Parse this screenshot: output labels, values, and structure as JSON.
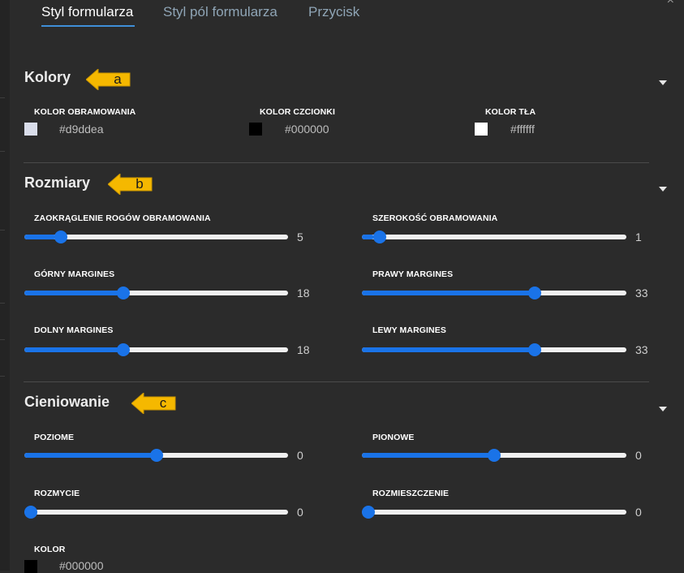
{
  "tabs": [
    "Styl formularza",
    "Styl pól formularza",
    "Przycisk"
  ],
  "close_symbol": "×",
  "accent_color": "#1a73e8",
  "callout_color": "#f5b800",
  "sections": {
    "kolory": {
      "title": "Kolory",
      "callout": "a",
      "colors": [
        {
          "label": "KOLOR OBRAMOWANIA",
          "value": "#d9ddea",
          "swatch": "#d9ddea"
        },
        {
          "label": "KOLOR CZCIONKI",
          "value": "#000000",
          "swatch": "#000000"
        },
        {
          "label": "KOLOR TŁA",
          "value": "#ffffff",
          "swatch": "#ffffff"
        }
      ]
    },
    "rozmiary": {
      "title": "Rozmiary",
      "callout": "b",
      "sliders": [
        {
          "label": "ZAOKRĄGLENIE ROGÓW OBRAMOWANIA",
          "value": "5",
          "fraction": 0.12
        },
        {
          "label": "SZEROKOŚĆ OBRAMOWANIA",
          "value": "1",
          "fraction": 0.045
        },
        {
          "label": "GÓRNY MARGINES",
          "value": "18",
          "fraction": 0.37
        },
        {
          "label": "PRAWY MARGINES",
          "value": "33",
          "fraction": 0.66
        },
        {
          "label": "DOLNY MARGINES",
          "value": "18",
          "fraction": 0.37
        },
        {
          "label": "LEWY MARGINES",
          "value": "33",
          "fraction": 0.66
        }
      ]
    },
    "cieniowanie": {
      "title": "Cieniowanie",
      "callout": "c",
      "sliders": [
        {
          "label": "POZIOME",
          "value": "0",
          "fraction": 0.5
        },
        {
          "label": "PIONOWE",
          "value": "0",
          "fraction": 0.5
        },
        {
          "label": "ROZMYCIE",
          "value": "0",
          "fraction": 0.0
        },
        {
          "label": "ROZMIESZCZENIE",
          "value": "0",
          "fraction": 0.0
        }
      ],
      "color": {
        "label": "KOLOR",
        "value": "#000000",
        "swatch": "#000000"
      }
    }
  }
}
